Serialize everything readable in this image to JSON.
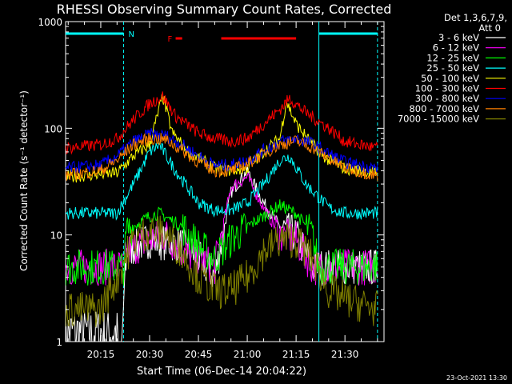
{
  "chart_data": {
    "type": "line",
    "title": "RHESSI Observing Summary Count Rates, Corrected",
    "xlabel": "Start Time (06-Dec-14 20:04:22)",
    "ylabel": "Corrected Count Rate (s⁻¹ detector⁻¹)",
    "y_scale": "log",
    "ylim": [
      1,
      1000
    ],
    "y_ticks": [
      "1",
      "10",
      "100",
      "1000"
    ],
    "xlim_minutes": [
      20.07,
      21.7
    ],
    "x_ticks": [
      "20:15",
      "20:30",
      "20:45",
      "21:00",
      "21:15",
      "21:30"
    ],
    "detector_info": [
      "Det 1,3,6,7,9,",
      "Att 0"
    ],
    "timestamp": "23-Oct-2021 13:30",
    "flags": [
      {
        "label": "N",
        "color": "#00ffff",
        "segments": [
          [
            "20:04",
            "20:22"
          ],
          [
            "21:22",
            "21:40"
          ]
        ]
      },
      {
        "label": "F",
        "color": "#ff0000",
        "segments": [
          [
            "20:38",
            "20:40"
          ],
          [
            "20:52",
            "21:15"
          ]
        ]
      }
    ],
    "boundaries": [
      "20:22",
      "21:22",
      "21:40"
    ],
    "series": [
      {
        "name": "3 - 6 keV",
        "color": "#ffffff",
        "points": [
          [
            "20:04",
            0
          ],
          [
            "20:20",
            0
          ],
          [
            "20:22",
            3
          ],
          [
            "20:23",
            7
          ],
          [
            "20:30",
            9
          ],
          [
            "20:40",
            8
          ],
          [
            "20:45",
            6
          ],
          [
            "20:50",
            4
          ],
          [
            "20:55",
            25
          ],
          [
            "21:00",
            40
          ],
          [
            "21:05",
            20
          ],
          [
            "21:10",
            12
          ],
          [
            "21:15",
            10
          ],
          [
            "21:20",
            5
          ],
          [
            "21:22",
            5
          ],
          [
            "21:30",
            5
          ],
          [
            "21:40",
            5
          ]
        ]
      },
      {
        "name": "6 - 12 keV",
        "color": "#ff00ff",
        "points": [
          [
            "20:04",
            5
          ],
          [
            "20:22",
            5
          ],
          [
            "20:23",
            7
          ],
          [
            "20:30",
            9
          ],
          [
            "20:35",
            10
          ],
          [
            "20:40",
            7
          ],
          [
            "20:45",
            6
          ],
          [
            "20:50",
            5
          ],
          [
            "20:55",
            28
          ],
          [
            "21:00",
            35
          ],
          [
            "21:05",
            18
          ],
          [
            "21:10",
            10
          ],
          [
            "21:15",
            9
          ],
          [
            "21:20",
            5
          ],
          [
            "21:22",
            5
          ],
          [
            "21:40",
            5
          ]
        ]
      },
      {
        "name": "12 - 25 keV",
        "color": "#00ff00",
        "points": [
          [
            "20:04",
            5
          ],
          [
            "20:22",
            5
          ],
          [
            "20:23",
            11
          ],
          [
            "20:30",
            15
          ],
          [
            "20:33",
            16
          ],
          [
            "20:40",
            12
          ],
          [
            "20:45",
            8
          ],
          [
            "20:50",
            6
          ],
          [
            "20:55",
            9
          ],
          [
            "21:00",
            12
          ],
          [
            "21:05",
            15
          ],
          [
            "21:10",
            19
          ],
          [
            "21:15",
            16
          ],
          [
            "21:20",
            10
          ],
          [
            "21:22",
            5
          ],
          [
            "21:40",
            5
          ]
        ]
      },
      {
        "name": "25 - 50 keV",
        "color": "#00ffff",
        "points": [
          [
            "20:04",
            16
          ],
          [
            "20:20",
            16
          ],
          [
            "20:25",
            30
          ],
          [
            "20:30",
            60
          ],
          [
            "20:33",
            70
          ],
          [
            "20:38",
            40
          ],
          [
            "20:45",
            20
          ],
          [
            "20:50",
            17
          ],
          [
            "20:55",
            17
          ],
          [
            "21:00",
            20
          ],
          [
            "21:05",
            30
          ],
          [
            "21:10",
            50
          ],
          [
            "21:13",
            55
          ],
          [
            "21:18",
            30
          ],
          [
            "21:25",
            18
          ],
          [
            "21:30",
            16
          ],
          [
            "21:40",
            16
          ]
        ]
      },
      {
        "name": "50 - 100 keV",
        "color": "#ffff00",
        "points": [
          [
            "20:04",
            35
          ],
          [
            "20:20",
            38
          ],
          [
            "20:25",
            55
          ],
          [
            "20:30",
            70
          ],
          [
            "20:34",
            200
          ],
          [
            "20:37",
            90
          ],
          [
            "20:42",
            60
          ],
          [
            "20:50",
            42
          ],
          [
            "20:55",
            40
          ],
          [
            "21:00",
            42
          ],
          [
            "21:05",
            60
          ],
          [
            "21:10",
            80
          ],
          [
            "21:12",
            180
          ],
          [
            "21:15",
            110
          ],
          [
            "21:20",
            70
          ],
          [
            "21:25",
            50
          ],
          [
            "21:30",
            42
          ],
          [
            "21:40",
            38
          ]
        ]
      },
      {
        "name": "100 - 300 keV",
        "color": "#ff0000",
        "points": [
          [
            "20:04",
            65
          ],
          [
            "20:15",
            70
          ],
          [
            "20:20",
            80
          ],
          [
            "20:25",
            120
          ],
          [
            "20:30",
            170
          ],
          [
            "20:34",
            200
          ],
          [
            "20:38",
            130
          ],
          [
            "20:45",
            90
          ],
          [
            "20:50",
            80
          ],
          [
            "20:55",
            75
          ],
          [
            "21:00",
            80
          ],
          [
            "21:05",
            110
          ],
          [
            "21:10",
            150
          ],
          [
            "21:13",
            190
          ],
          [
            "21:18",
            140
          ],
          [
            "21:25",
            100
          ],
          [
            "21:30",
            75
          ],
          [
            "21:40",
            65
          ]
        ]
      },
      {
        "name": "300 - 800 keV",
        "color": "#0000ff",
        "points": [
          [
            "20:04",
            42
          ],
          [
            "20:15",
            45
          ],
          [
            "20:20",
            55
          ],
          [
            "20:25",
            75
          ],
          [
            "20:30",
            88
          ],
          [
            "20:35",
            85
          ],
          [
            "20:40",
            70
          ],
          [
            "20:45",
            55
          ],
          [
            "20:50",
            45
          ],
          [
            "20:55",
            45
          ],
          [
            "21:00",
            50
          ],
          [
            "21:05",
            62
          ],
          [
            "21:10",
            75
          ],
          [
            "21:15",
            80
          ],
          [
            "21:20",
            72
          ],
          [
            "21:25",
            58
          ],
          [
            "21:30",
            48
          ],
          [
            "21:40",
            42
          ]
        ]
      },
      {
        "name": "800 - 7000 keV",
        "color": "#ff8000",
        "points": [
          [
            "20:04",
            36
          ],
          [
            "20:15",
            40
          ],
          [
            "20:20",
            50
          ],
          [
            "20:25",
            70
          ],
          [
            "20:30",
            80
          ],
          [
            "20:35",
            78
          ],
          [
            "20:40",
            62
          ],
          [
            "20:45",
            48
          ],
          [
            "20:50",
            40
          ],
          [
            "20:55",
            40
          ],
          [
            "21:00",
            46
          ],
          [
            "21:05",
            58
          ],
          [
            "21:10",
            70
          ],
          [
            "21:15",
            76
          ],
          [
            "21:20",
            66
          ],
          [
            "21:25",
            52
          ],
          [
            "21:30",
            42
          ],
          [
            "21:40",
            36
          ]
        ]
      },
      {
        "name": "7000 - 15000 keV",
        "color": "#808000",
        "points": [
          [
            "20:04",
            2
          ],
          [
            "20:15",
            2
          ],
          [
            "20:20",
            4
          ],
          [
            "20:25",
            9
          ],
          [
            "20:30",
            11
          ],
          [
            "20:35",
            10
          ],
          [
            "20:40",
            7
          ],
          [
            "20:45",
            4
          ],
          [
            "20:50",
            3
          ],
          [
            "20:55",
            3
          ],
          [
            "21:00",
            4
          ],
          [
            "21:05",
            7
          ],
          [
            "21:10",
            9
          ],
          [
            "21:15",
            9
          ],
          [
            "21:20",
            6
          ],
          [
            "21:25",
            3
          ],
          [
            "21:30",
            2.5
          ],
          [
            "21:40",
            2
          ]
        ]
      }
    ]
  }
}
